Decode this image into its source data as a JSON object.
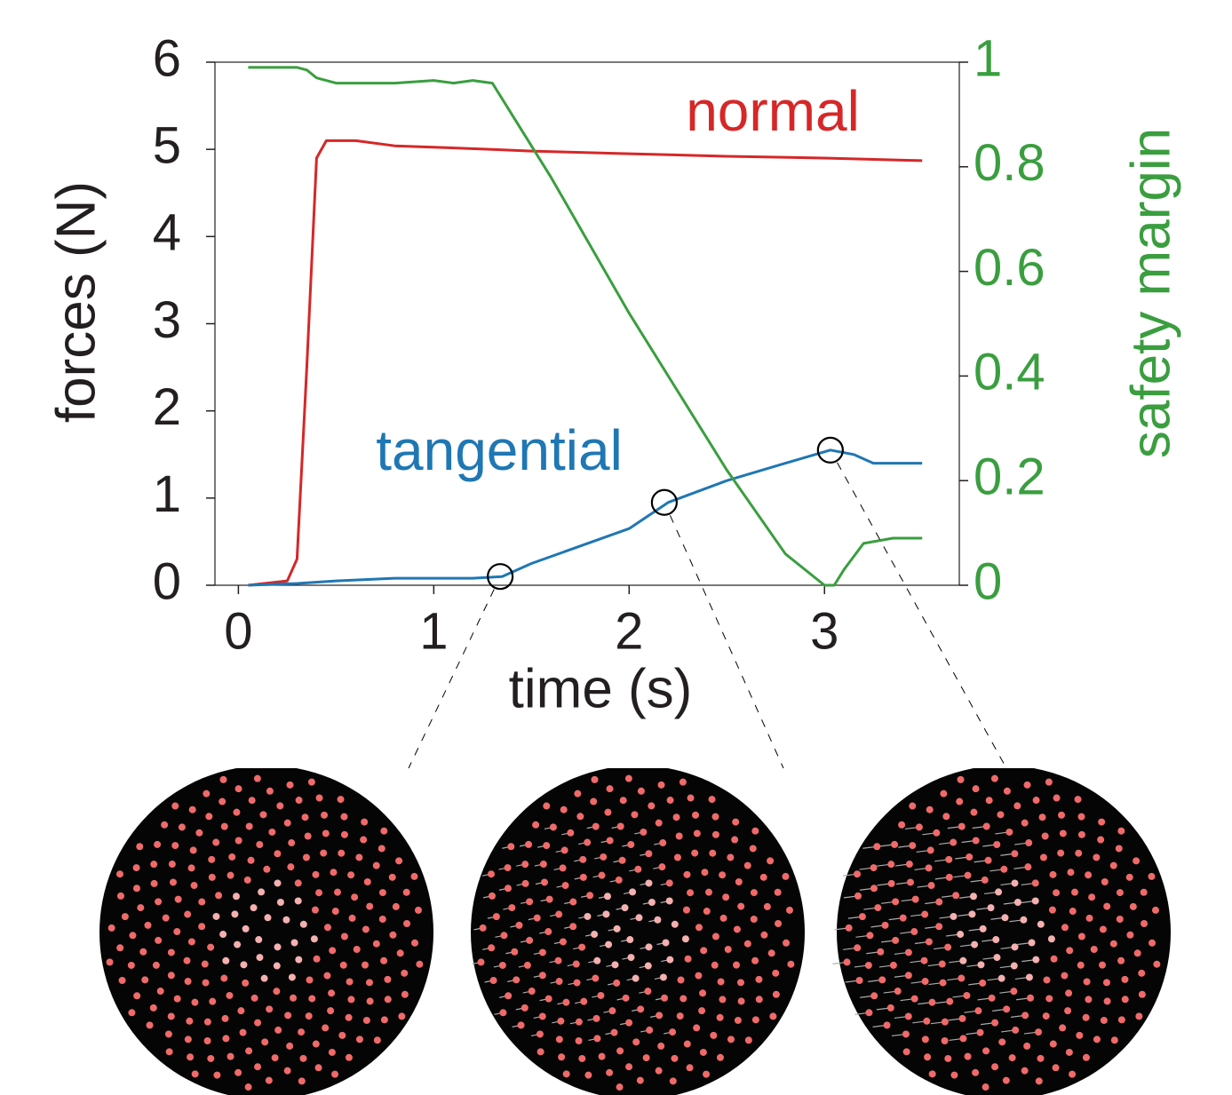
{
  "chart_data": {
    "type": "line",
    "xlabel": "time (s)",
    "ylabel": "forces (N)",
    "y2label": "safety margin",
    "xlim": [
      -0.12,
      3.69
    ],
    "ylim": [
      0,
      6
    ],
    "y2lim": [
      0,
      1
    ],
    "xticks": [
      0,
      1,
      2,
      3
    ],
    "yticks": [
      0,
      1,
      2,
      3,
      4,
      5,
      6
    ],
    "y2ticks": [
      0,
      0.2,
      0.4,
      0.6,
      0.8,
      1
    ],
    "y2color": "#3a9e3f",
    "series": [
      {
        "name": "normal",
        "color": "#d62728",
        "x": [
          0.05,
          0.25,
          0.3,
          0.35,
          0.4,
          0.45,
          0.6,
          0.8,
          1.3,
          1.5,
          2.0,
          2.5,
          3.0,
          3.5
        ],
        "values": [
          0,
          0.05,
          0.3,
          2.5,
          4.9,
          5.1,
          5.1,
          5.04,
          5.0,
          4.98,
          4.95,
          4.92,
          4.9,
          4.87
        ]
      },
      {
        "name": "tangential",
        "color": "#1f77b4",
        "x": [
          0.05,
          0.3,
          0.5,
          0.8,
          1.2,
          1.35,
          1.5,
          2.0,
          2.2,
          2.5,
          2.8,
          3.03,
          3.15,
          3.25,
          3.5
        ],
        "values": [
          0,
          0.02,
          0.05,
          0.08,
          0.08,
          0.1,
          0.25,
          0.65,
          0.95,
          1.2,
          1.4,
          1.55,
          1.5,
          1.4,
          1.4
        ]
      },
      {
        "color": "#3a9e3f",
        "axis": "y2",
        "x": [
          0.05,
          0.3,
          0.35,
          0.4,
          0.5,
          0.8,
          1.0,
          1.1,
          1.2,
          1.3,
          1.4,
          1.6,
          2.0,
          2.5,
          2.8,
          3.0,
          3.05,
          3.1,
          3.2,
          3.35,
          3.5
        ],
        "values": [
          0.99,
          0.99,
          0.985,
          0.97,
          0.96,
          0.96,
          0.965,
          0.96,
          0.965,
          0.96,
          0.9,
          0.78,
          0.52,
          0.22,
          0.06,
          0,
          0,
          0.03,
          0.08,
          0.09,
          0.09
        ]
      }
    ],
    "markers": {
      "x": [
        1.34,
        2.18,
        3.03
      ],
      "y": [
        0.1,
        0.95,
        1.55
      ]
    }
  }
}
